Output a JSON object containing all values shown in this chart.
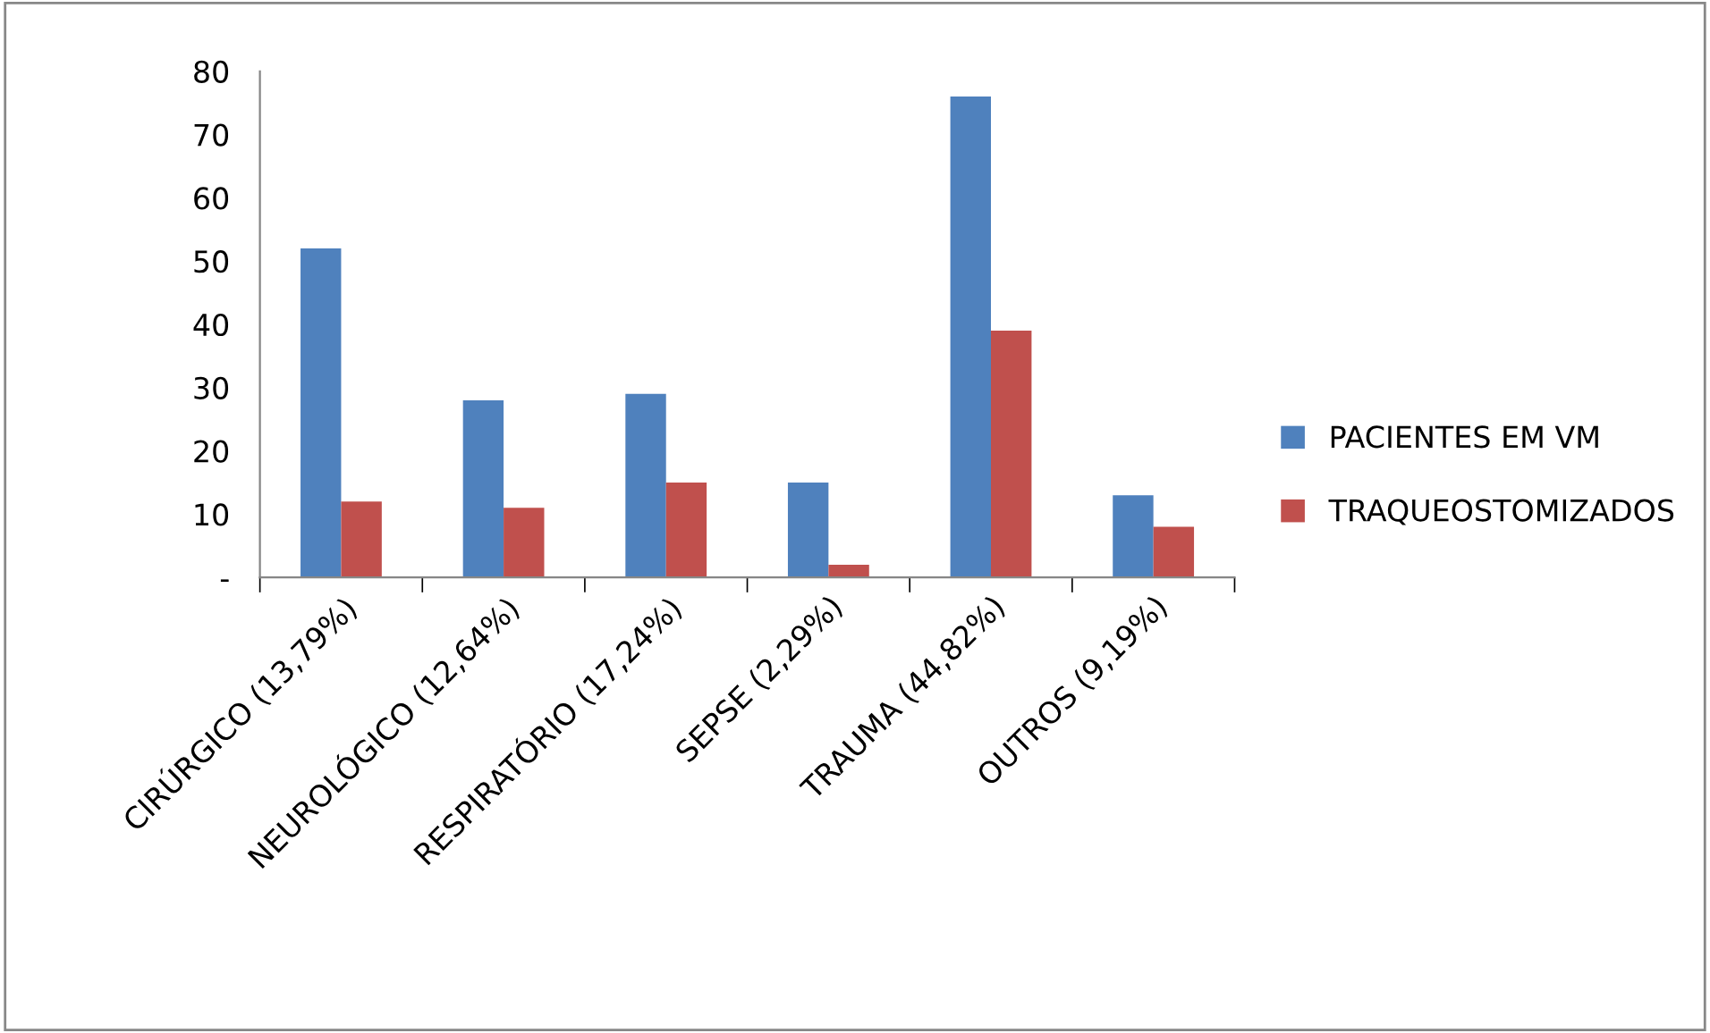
{
  "chart_data": {
    "type": "bar",
    "categories": [
      "CIRÚRGICO (13,79%)",
      "NEUROLÓGICO (12,64%)",
      "RESPIRATÓRIO (17,24%)",
      "SEPSE (2,29%)",
      "TRAUMA (44,82%)",
      "OUTROS (9,19%)"
    ],
    "series": [
      {
        "name": "PACIENTES EM VM",
        "color": "#4f81bd",
        "values": [
          52,
          28,
          29,
          15,
          76,
          13
        ]
      },
      {
        "name": "TRAQUEOSTOMIZADOS",
        "color": "#c0504d",
        "values": [
          12,
          11,
          15,
          2,
          39,
          8
        ]
      }
    ],
    "ylim": [
      0,
      80
    ],
    "yticks": [
      {
        "value": 0,
        "label": "-"
      },
      10,
      20,
      30,
      40,
      50,
      60,
      70,
      80
    ],
    "grid": false,
    "legend": "right"
  }
}
